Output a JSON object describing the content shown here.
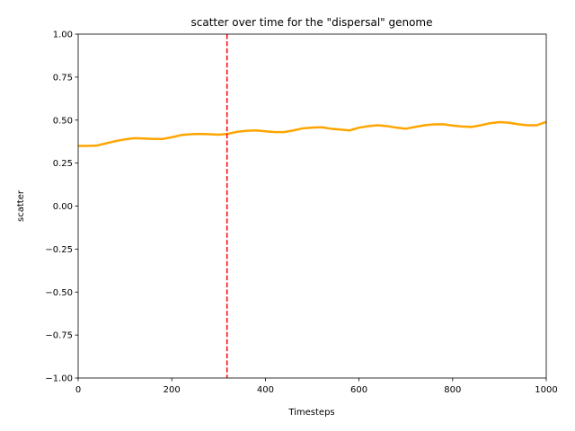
{
  "chart_data": {
    "type": "line",
    "title": "scatter over time for the \"dispersal\" genome",
    "xlabel": "Timesteps",
    "ylabel": "scatter",
    "xlim": [
      0,
      1000
    ],
    "ylim": [
      -1.0,
      1.0
    ],
    "xticks": [
      0,
      200,
      400,
      600,
      800,
      1000
    ],
    "yticks": [
      -1.0,
      -0.75,
      -0.5,
      -0.25,
      0.0,
      0.25,
      0.5,
      0.75,
      1.0
    ],
    "ytick_labels": [
      "−1.00",
      "−0.75",
      "−0.50",
      "−0.25",
      "0.00",
      "0.25",
      "0.50",
      "0.75",
      "1.00"
    ],
    "grid": false,
    "series": [
      {
        "color": "#ffa500",
        "x": [
          0,
          20,
          40,
          60,
          80,
          100,
          120,
          140,
          160,
          180,
          200,
          220,
          240,
          260,
          280,
          300,
          320,
          340,
          360,
          380,
          400,
          420,
          440,
          460,
          480,
          500,
          520,
          540,
          560,
          580,
          600,
          620,
          640,
          660,
          680,
          700,
          720,
          740,
          760,
          780,
          800,
          820,
          840,
          860,
          880,
          900,
          920,
          940,
          960,
          980,
          1000
        ],
        "y": [
          0.35,
          0.35,
          0.352,
          0.365,
          0.378,
          0.388,
          0.395,
          0.393,
          0.39,
          0.39,
          0.4,
          0.413,
          0.418,
          0.42,
          0.418,
          0.415,
          0.42,
          0.432,
          0.438,
          0.44,
          0.435,
          0.43,
          0.43,
          0.44,
          0.452,
          0.456,
          0.458,
          0.45,
          0.445,
          0.44,
          0.456,
          0.465,
          0.47,
          0.465,
          0.456,
          0.45,
          0.46,
          0.47,
          0.475,
          0.476,
          0.468,
          0.463,
          0.46,
          0.47,
          0.482,
          0.488,
          0.485,
          0.476,
          0.47,
          0.47,
          0.49
        ]
      }
    ],
    "vlines": [
      {
        "x": 318,
        "color": "#ff0000",
        "style": "dashed"
      }
    ]
  }
}
